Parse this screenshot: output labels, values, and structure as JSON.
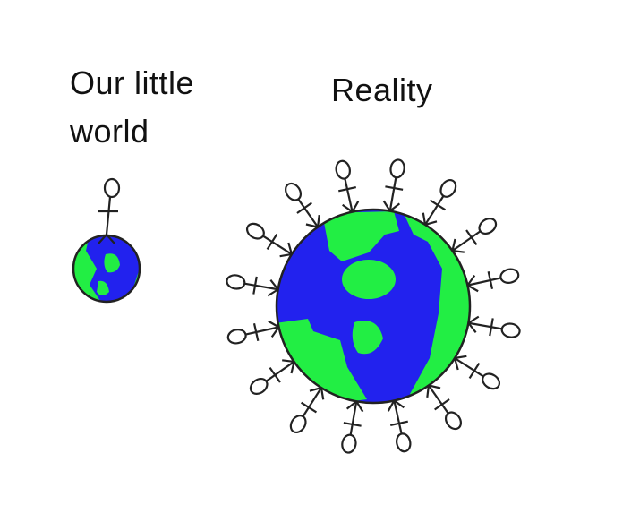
{
  "labels": {
    "small_world": "Our little world",
    "big_world": "Reality"
  },
  "colors": {
    "land": "#22ee44",
    "ocean": "#2222ee",
    "outline": "#222222",
    "background": "#ffffff"
  },
  "figures": {
    "small_world_people": 1,
    "big_world_people": 16
  }
}
